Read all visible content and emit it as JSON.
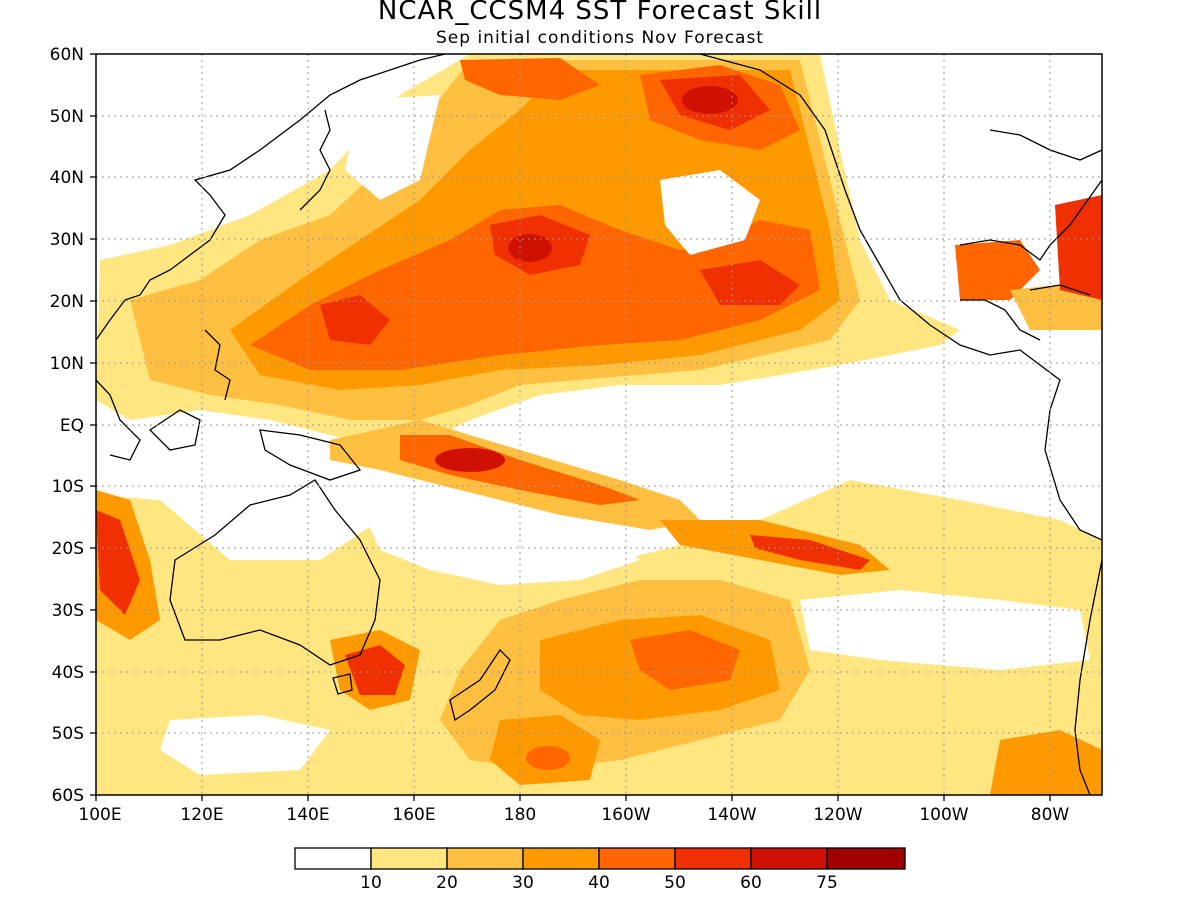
{
  "title": "NCAR_CCSM4 SST Forecast Skill",
  "subtitle": "Sep initial conditions   Nov Forecast",
  "map": {
    "lat_labels": [
      "60N",
      "50N",
      "40N",
      "30N",
      "20N",
      "10N",
      "EQ",
      "10S",
      "20S",
      "30S",
      "40S",
      "50S",
      "60S"
    ],
    "lon_labels": [
      "100E",
      "120E",
      "140E",
      "160E",
      "180",
      "160W",
      "140W",
      "120W",
      "100W",
      "80W"
    ],
    "lat_range": [
      -60,
      60
    ],
    "lon_range": [
      100,
      290
    ],
    "grid": "dotted"
  },
  "colorbar": {
    "colors": [
      "#ffffff",
      "#ffe680",
      "#ffbf40",
      "#ff9900",
      "#ff6600",
      "#f03000",
      "#d01000",
      "#a00000"
    ],
    "labels": [
      "10",
      "20",
      "30",
      "40",
      "50",
      "60",
      "75"
    ]
  }
}
